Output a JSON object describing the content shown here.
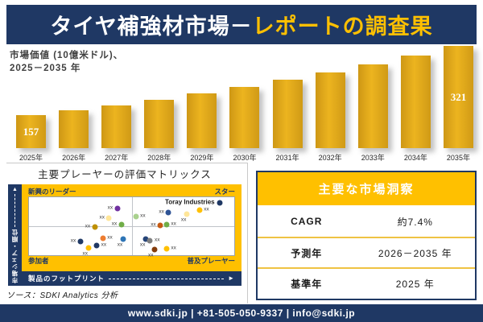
{
  "colors": {
    "navy": "#1F3864",
    "gold": "#FFC000",
    "bar_gold": "#D9A018",
    "line_gray": "#C9C9C9"
  },
  "icons": {
    "up_arrow": "▲",
    "right_arrow": "►"
  },
  "banner": {
    "title_part1": "タイヤ補強材市場－",
    "title_part2": "レポートの調査果"
  },
  "bar_chart_label": {
    "line1": "市場価値 (10億米ドル)、",
    "line2": "2025－2035 年"
  },
  "chart_data": [
    {
      "type": "bar",
      "title": "市場価値 (10億米ドル)、2025－2035 年",
      "categories": [
        "2025年",
        "2026年",
        "2027年",
        "2028年",
        "2029年",
        "2030年",
        "2031年",
        "2032年",
        "2033年",
        "2034年",
        "2035年"
      ],
      "values": [
        157,
        169,
        181,
        194,
        209,
        224,
        241,
        259,
        278,
        298,
        321
      ],
      "labeled_values": {
        "2025年": 157,
        "2035年": 321
      },
      "ylim": [
        0,
        340
      ],
      "bar_color": "#D9A018",
      "grid": false,
      "legend": false
    },
    {
      "type": "scatter",
      "title": "主要プレーヤーの評価マトリックス",
      "quadrant_labels": {
        "top_left": "新興のリーダー",
        "top_right": "スター",
        "bottom_left": "参加者",
        "bottom_right": "普及プレーヤー"
      },
      "xlabel": "製品のフットプリント",
      "ylabel": "市場シェア・順位",
      "points": [
        {
          "x": 43,
          "y": 19,
          "color": "#7030A0",
          "label": "xx",
          "side": "left"
        },
        {
          "x": 39,
          "y": 36,
          "color": "#FFE699",
          "label": "xx",
          "side": "left"
        },
        {
          "x": 32,
          "y": 51,
          "color": "#BF9000",
          "label": "xx",
          "side": "left"
        },
        {
          "x": 45,
          "y": 47,
          "color": "#70AD47",
          "label": "xx",
          "side": "left"
        },
        {
          "x": 36,
          "y": 71,
          "color": "#ED7D31",
          "label": "xx",
          "side": "right"
        },
        {
          "x": 25,
          "y": 76,
          "color": "#1F3864",
          "label": "xx",
          "side": "left"
        },
        {
          "x": 46,
          "y": 72,
          "color": "#2E75B6",
          "label": "xx",
          "side": "bottom"
        },
        {
          "x": 33,
          "y": 83,
          "color": "#203864",
          "label": "xx",
          "side": "right"
        },
        {
          "x": 29,
          "y": 87,
          "color": "#FFC000",
          "label": "xx",
          "side": "bottom"
        },
        {
          "x": 93,
          "y": 10,
          "color": "#1F3864",
          "label": "Toray Industries",
          "side": "left",
          "company": true
        },
        {
          "x": 52,
          "y": 33,
          "color": "#A9D18E",
          "label": "xx",
          "side": "right"
        },
        {
          "x": 68,
          "y": 26,
          "color": "#2E5395",
          "label": "xx",
          "side": "left"
        },
        {
          "x": 77,
          "y": 29,
          "color": "#FFE699",
          "label": "xx",
          "side": "bottom"
        },
        {
          "x": 83,
          "y": 22,
          "color": "#FFC000",
          "label": "xx",
          "side": "right"
        },
        {
          "x": 64,
          "y": 49,
          "color": "#C55A11",
          "label": "xx",
          "side": "left"
        },
        {
          "x": 67,
          "y": 47,
          "color": "#70AD47",
          "label": "xx",
          "side": "right"
        },
        {
          "x": 57,
          "y": 72,
          "color": "#264478",
          "label": "xx",
          "side": "bottom"
        },
        {
          "x": 59,
          "y": 75,
          "color": "#7F7F7F",
          "label": "xx",
          "side": "right"
        },
        {
          "x": 61,
          "y": 90,
          "color": "#843C0C",
          "label": "xx",
          "side": "bottom"
        },
        {
          "x": 67,
          "y": 89,
          "color": "#FFC000",
          "label": "xx",
          "side": "right"
        }
      ]
    }
  ],
  "insights": {
    "header": "主要な市場洞察",
    "rows": [
      {
        "label": "CAGR",
        "value": "約7.4%"
      },
      {
        "label": "予測年",
        "value": "2026－2035 年"
      },
      {
        "label": "基準年",
        "value": "2025 年"
      }
    ]
  },
  "source": "ソース：SDKI Analytics 分析",
  "footer": "www.sdki.jp | +81-505-050-9337 | info@sdki.jp"
}
